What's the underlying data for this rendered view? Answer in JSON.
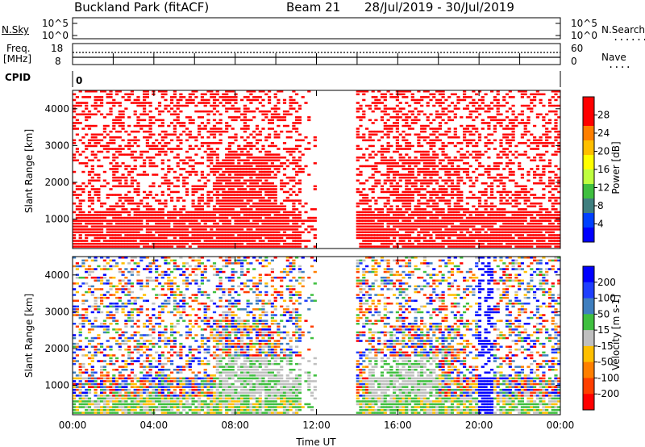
{
  "header": {
    "station": "Buckland Park (fitACF)",
    "beam": "Beam 21",
    "dates": "28/Jul/2019 - 30/Jul/2019"
  },
  "top_panels": {
    "nsky_label": "N.Sky",
    "nsky_ticks_left": [
      "10^5",
      "10^0"
    ],
    "nsearch_label": "N.Search",
    "nsearch_ticks_right": [
      "10^5",
      "10^0"
    ],
    "freq_label": "Freq.",
    "freq_unit": "[MHz]",
    "freq_ticks": [
      "18",
      "8"
    ],
    "nave_label": "Nave",
    "nave_ticks": [
      "60",
      "0"
    ],
    "cpid_label": "CPID",
    "cpid_value": "0"
  },
  "chart_data": [
    {
      "type": "heatmap",
      "name": "power-panel",
      "ylabel": "Slant Range [km]",
      "yticks": [
        "4000",
        "3000",
        "2000",
        "1000"
      ],
      "ylim": [
        200,
        4500
      ],
      "xticks": [
        "00:00",
        "04:00",
        "08:00",
        "12:00",
        "16:00",
        "20:00",
        "00:00"
      ],
      "xlim_hours": [
        0,
        48
      ],
      "data_gap_hours": [
        12.0,
        14.0
      ],
      "colorbar": {
        "label": "Power [dB]",
        "ticks": [
          "28",
          "24",
          "20",
          "16",
          "12",
          "8",
          "4"
        ],
        "colors": [
          "#ff0000",
          "#ff0000",
          "#ff7f00",
          "#ffbf00",
          "#ffff00",
          "#bfff3f",
          "#3fbf3f",
          "#3f7f7f",
          "#0040ff",
          "#0000ff"
        ]
      }
    },
    {
      "type": "heatmap",
      "name": "velocity-panel",
      "ylabel": "Slant Range [km]",
      "yticks": [
        "4000",
        "3000",
        "2000",
        "1000"
      ],
      "ylim": [
        200,
        4500
      ],
      "xticks": [
        "00:00",
        "04:00",
        "08:00",
        "12:00",
        "16:00",
        "20:00",
        "00:00"
      ],
      "xlabel": "Time UT",
      "xlim_hours": [
        0,
        48
      ],
      "data_gap_hours": [
        12.0,
        14.0
      ],
      "colorbar": {
        "label": "Velocity [m s-1]",
        "ticks": [
          "200",
          "100",
          "50",
          "15",
          "-15",
          "-50",
          "-100",
          "-200"
        ],
        "colors": [
          "#0000ff",
          "#1f3fff",
          "#3f7fbf",
          "#3fbf3f",
          "#bfbfbf",
          "#ffbf00",
          "#ff7f00",
          "#ff3f00",
          "#ff0000"
        ]
      }
    }
  ]
}
